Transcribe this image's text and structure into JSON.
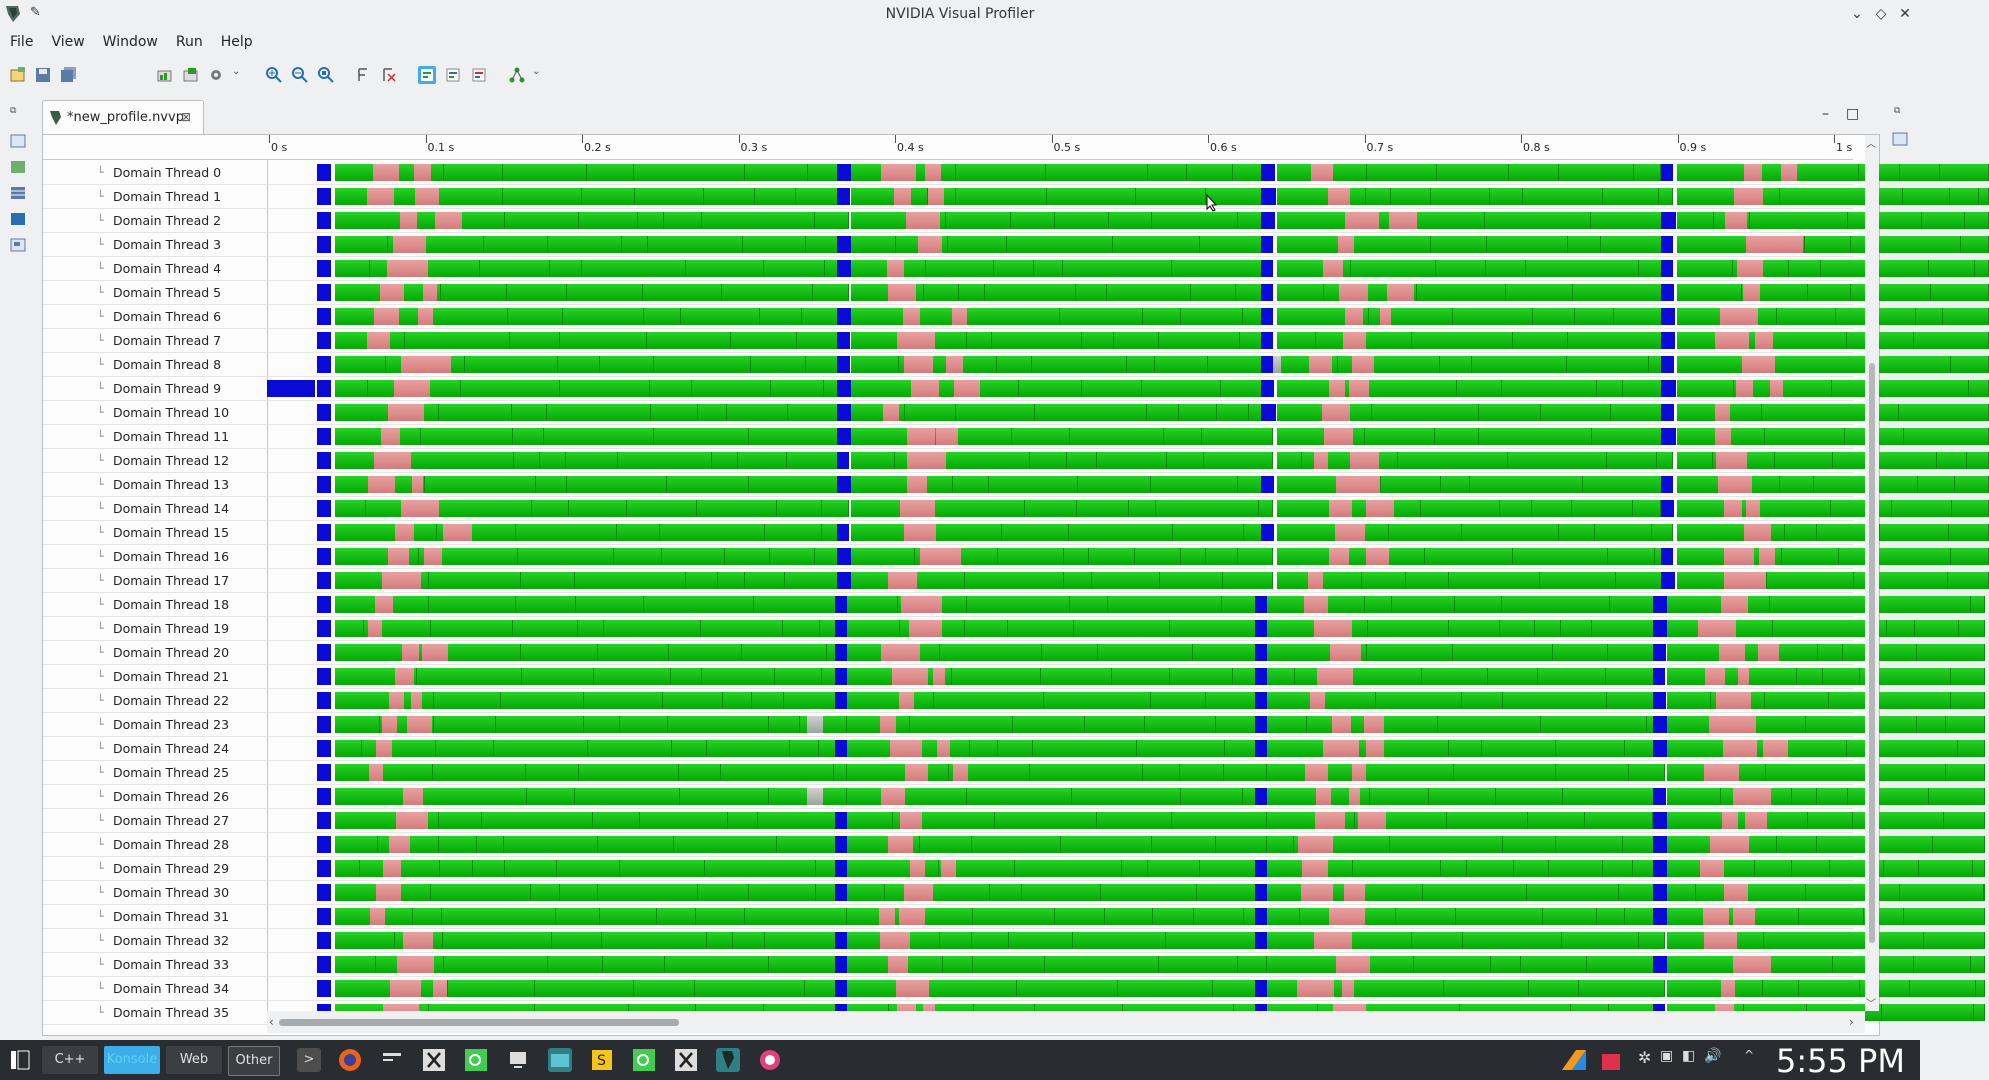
{
  "window": {
    "title": "NVIDIA Visual Profiler"
  },
  "menu": [
    "File",
    "View",
    "Window",
    "Run",
    "Help"
  ],
  "tab": {
    "label": "*new_profile.nvvp"
  },
  "ruler": {
    "ticks": [
      "0 s",
      "0.1 s",
      "0.2 s",
      "0.3 s",
      "0.4 s",
      "0.5 s",
      "0.6 s",
      "0.7 s",
      "0.8 s",
      "0.9 s",
      "1 s"
    ]
  },
  "threads": [
    "Domain Thread 0",
    "Domain Thread 1",
    "Domain Thread 2",
    "Domain Thread 3",
    "Domain Thread 4",
    "Domain Thread 5",
    "Domain Thread 6",
    "Domain Thread 7",
    "Domain Thread 8",
    "Domain Thread 9",
    "Domain Thread 10",
    "Domain Thread 11",
    "Domain Thread 12",
    "Domain Thread 13",
    "Domain Thread 14",
    "Domain Thread 15",
    "Domain Thread 16",
    "Domain Thread 17",
    "Domain Thread 18",
    "Domain Thread 19",
    "Domain Thread 20",
    "Domain Thread 21",
    "Domain Thread 22",
    "Domain Thread 23",
    "Domain Thread 24",
    "Domain Thread 25",
    "Domain Thread 26",
    "Domain Thread 27",
    "Domain Thread 28",
    "Domain Thread 29",
    "Domain Thread 30",
    "Domain Thread 31",
    "Domain Thread 32",
    "Domain Thread 33",
    "Domain Thread 34",
    "Domain Thread 35"
  ],
  "taskbar": {
    "items": [
      "C++",
      "Konsole",
      "Web",
      "Other"
    ],
    "clock": "5:55 PM"
  },
  "colors": {
    "compute": "#0fbf0f",
    "idle": "#dc8c8c",
    "sync": "#0a0ad6",
    "accent": "#3daee9"
  }
}
